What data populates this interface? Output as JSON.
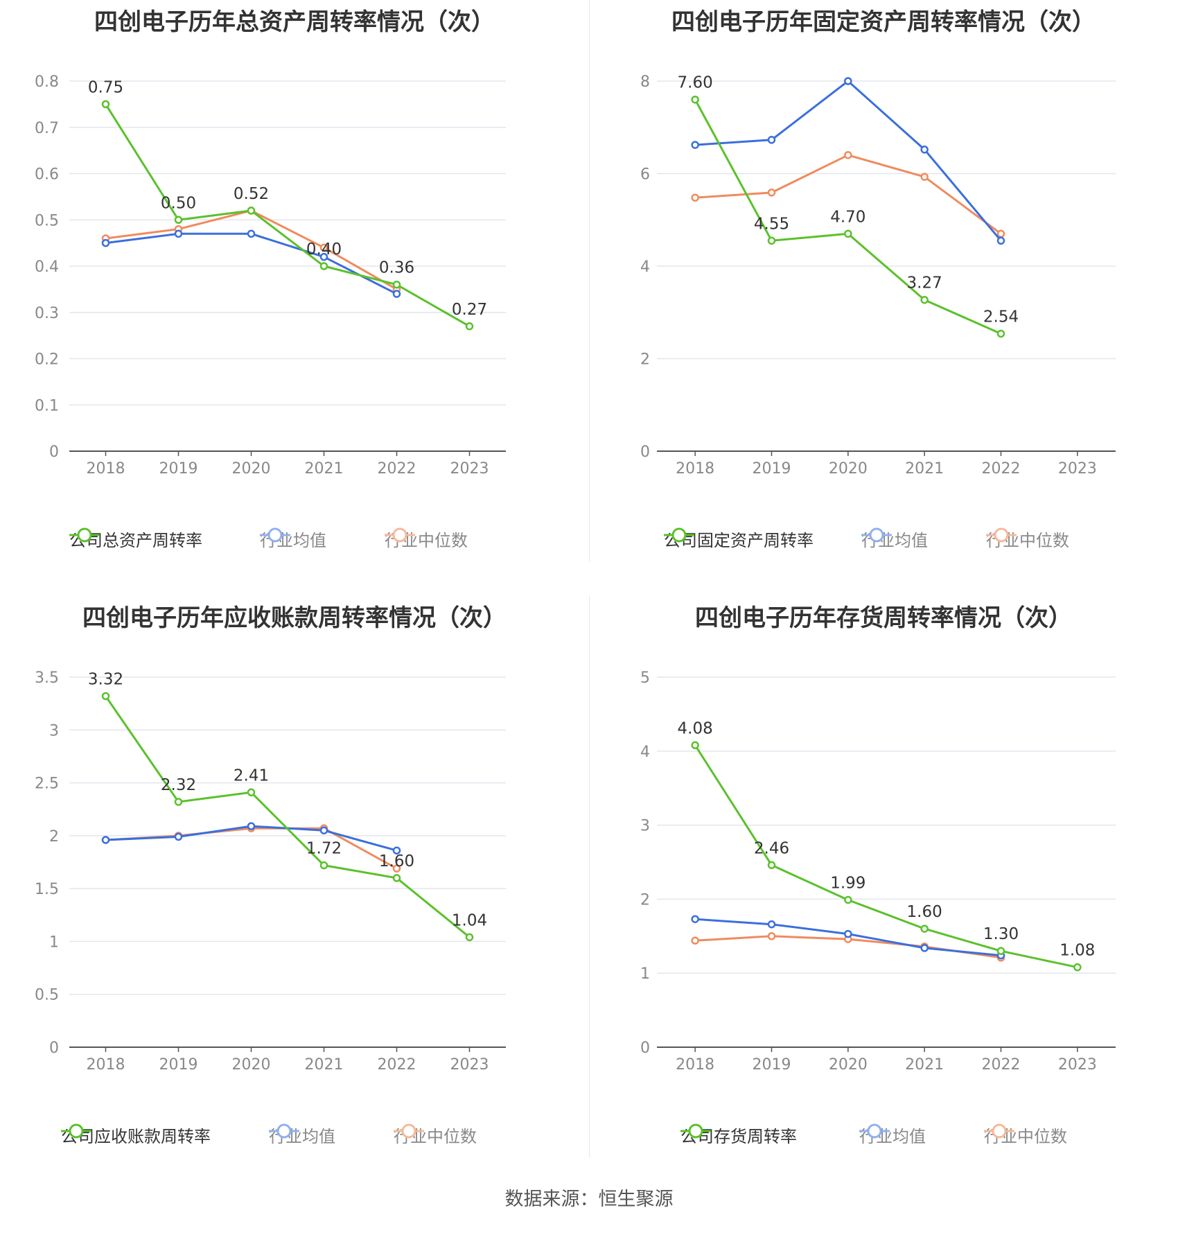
{
  "footer": {
    "source": "数据来源：恒生聚源"
  },
  "colors": {
    "company": "#5ac12b",
    "avg": "#3a6fdc",
    "median": "#f08a5d",
    "grid": "#e3e6ee",
    "axis": "#555555",
    "tick": "#888888"
  },
  "chart_data": [
    {
      "type": "line",
      "title": "四创电子历年总资产周转率情况（次）",
      "categories": [
        "2018",
        "2019",
        "2020",
        "2021",
        "2022",
        "2023"
      ],
      "ylim": [
        0,
        0.8
      ],
      "yticks": [
        "0",
        "0.1",
        "0.2",
        "0.3",
        "0.4",
        "0.5",
        "0.6",
        "0.7",
        "0.8"
      ],
      "series": [
        {
          "name": "公司总资产周转率",
          "role": "company",
          "values": [
            0.75,
            0.5,
            0.52,
            0.4,
            0.36,
            0.27
          ],
          "labels": [
            "0.75",
            "0.50",
            "0.52",
            "0.40",
            "0.36",
            "0.27"
          ]
        },
        {
          "name": "行业均值",
          "role": "avg",
          "values": [
            0.45,
            0.47,
            0.47,
            0.42,
            0.34,
            null
          ]
        },
        {
          "name": "行业中位数",
          "role": "median",
          "values": [
            0.46,
            0.48,
            0.52,
            0.44,
            0.35,
            null
          ]
        }
      ]
    },
    {
      "type": "line",
      "title": "四创电子历年固定资产周转率情况（次）",
      "categories": [
        "2018",
        "2019",
        "2020",
        "2021",
        "2022",
        "2023"
      ],
      "ylim": [
        0,
        8
      ],
      "yticks": [
        "0",
        "2",
        "4",
        "6",
        "8"
      ],
      "series": [
        {
          "name": "公司固定资产周转率",
          "role": "company",
          "values": [
            7.6,
            4.55,
            4.7,
            3.27,
            2.54,
            null
          ],
          "labels": [
            "7.60",
            "4.55",
            "4.70",
            "3.27",
            "2.54",
            null
          ]
        },
        {
          "name": "行业均值",
          "role": "avg",
          "values": [
            6.62,
            6.73,
            8.0,
            6.52,
            4.55,
            null
          ]
        },
        {
          "name": "行业中位数",
          "role": "median",
          "values": [
            5.48,
            5.59,
            6.4,
            5.93,
            4.7,
            null
          ]
        }
      ]
    },
    {
      "type": "line",
      "title": "四创电子历年应收账款周转率情况（次）",
      "categories": [
        "2018",
        "2019",
        "2020",
        "2021",
        "2022",
        "2023"
      ],
      "ylim": [
        0,
        3.5
      ],
      "yticks": [
        "0",
        "0.5",
        "1",
        "1.5",
        "2",
        "2.5",
        "3",
        "3.5"
      ],
      "series": [
        {
          "name": "公司应收账款周转率",
          "role": "company",
          "values": [
            3.32,
            2.32,
            2.41,
            1.72,
            1.6,
            1.04
          ],
          "labels": [
            "3.32",
            "2.32",
            "2.41",
            "1.72",
            "1.60",
            "1.04"
          ]
        },
        {
          "name": "行业均值",
          "role": "avg",
          "values": [
            1.96,
            1.99,
            2.09,
            2.05,
            1.86,
            null
          ]
        },
        {
          "name": "行业中位数",
          "role": "median",
          "values": [
            1.96,
            2.0,
            2.07,
            2.07,
            1.69,
            null
          ]
        }
      ]
    },
    {
      "type": "line",
      "title": "四创电子历年存货周转率情况（次）",
      "categories": [
        "2018",
        "2019",
        "2020",
        "2021",
        "2022",
        "2023"
      ],
      "ylim": [
        0,
        5
      ],
      "yticks": [
        "0",
        "1",
        "2",
        "3",
        "4",
        "5"
      ],
      "series": [
        {
          "name": "公司存货周转率",
          "role": "company",
          "values": [
            4.08,
            2.46,
            1.99,
            1.6,
            1.3,
            1.08
          ],
          "labels": [
            "4.08",
            "2.46",
            "1.99",
            "1.60",
            "1.30",
            "1.08"
          ]
        },
        {
          "name": "行业均值",
          "role": "avg",
          "values": [
            1.73,
            1.66,
            1.53,
            1.34,
            1.24,
            null
          ]
        },
        {
          "name": "行业中位数",
          "role": "median",
          "values": [
            1.44,
            1.5,
            1.46,
            1.36,
            1.21,
            null
          ]
        }
      ]
    }
  ]
}
